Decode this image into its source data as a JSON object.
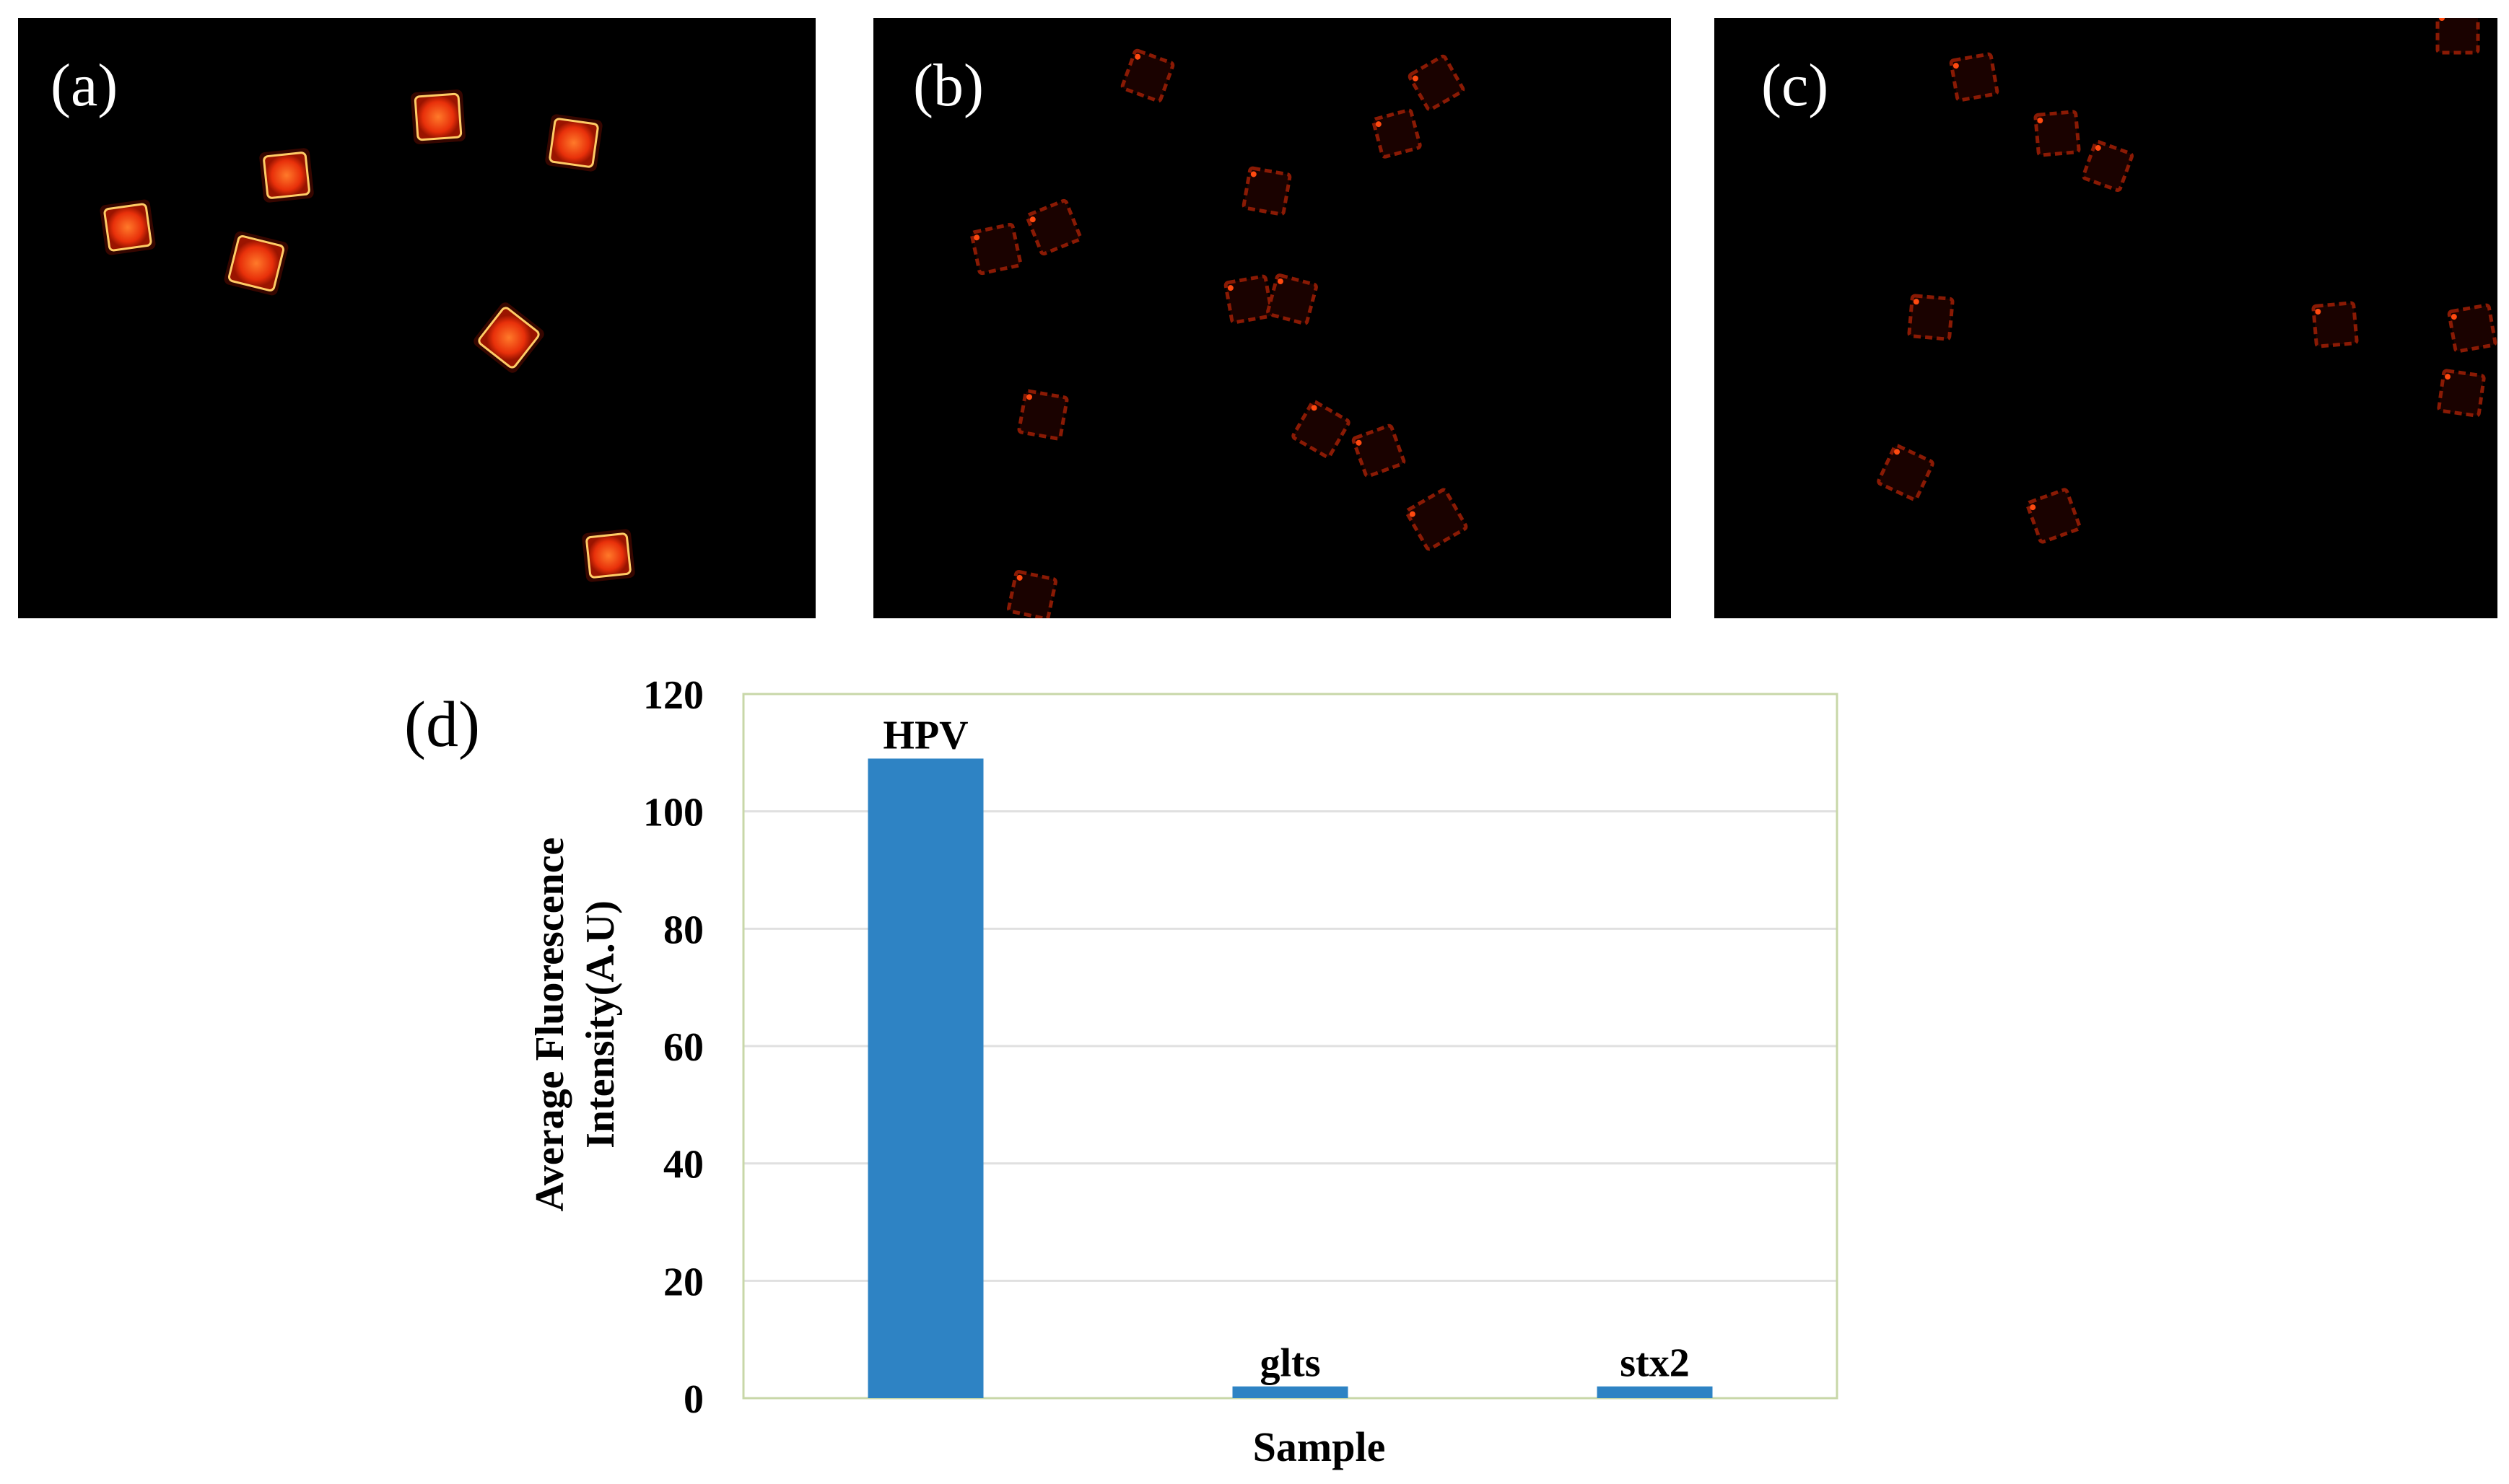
{
  "panels": [
    {
      "label": "(a)"
    },
    {
      "label": "(b)"
    },
    {
      "label": "(c)"
    }
  ],
  "chart_panel_label": "(d)",
  "colors": {
    "bar": "#2e83c4",
    "frame": "#c8d7a8",
    "grid": "#e0e0e0",
    "glow_bright": "#ff4a10",
    "glow_dim": "#8a1a04"
  },
  "chart_data": {
    "type": "bar",
    "categories": [
      "HPV",
      "glts",
      "stx2"
    ],
    "values": [
      109,
      2,
      2
    ],
    "xlabel": "Sample",
    "ylabel_lines": [
      "Average Fluorescence",
      "Intensity(A.U)"
    ],
    "ylim": [
      0,
      120
    ],
    "yticks": [
      0,
      20,
      40,
      60,
      80,
      100,
      120
    ],
    "grid": true,
    "bar_labels": [
      "HPV",
      "glts",
      "stx2"
    ]
  }
}
